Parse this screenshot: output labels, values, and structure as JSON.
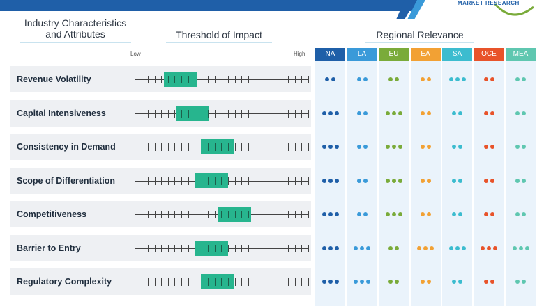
{
  "header": {
    "characteristics_title": "Industry Characteristics\nand Attributes",
    "threshold_title": "Threshold of Impact",
    "regional_title": "Regional Relevance",
    "low_label": "Low",
    "high_label": "High"
  },
  "logo": {
    "text": "MARKET RESEARCH"
  },
  "regions": [
    {
      "code": "NA",
      "color": "#1f5fa8",
      "dot_color": "#1f5fa8"
    },
    {
      "code": "LA",
      "color": "#3a9ad9",
      "dot_color": "#3a9ad9"
    },
    {
      "code": "EU",
      "color": "#7aab3a",
      "dot_color": "#7aab3a"
    },
    {
      "code": "EA",
      "color": "#f2a134",
      "dot_color": "#f2a134"
    },
    {
      "code": "SA",
      "color": "#3cbccf",
      "dot_color": "#3cbccf"
    },
    {
      "code": "OCE",
      "color": "#e8532a",
      "dot_color": "#e8532a"
    },
    {
      "code": "MEA",
      "color": "#5fc7b0",
      "dot_color": "#5fc7b0"
    }
  ],
  "scale": {
    "min": 0,
    "max": 1
  },
  "rows": [
    {
      "label": "Revenue Volatility",
      "impact_start": 0.17,
      "impact_end": 0.36,
      "dots": [
        2,
        2,
        2,
        2,
        3,
        2,
        2
      ]
    },
    {
      "label": "Capital Intensiveness",
      "impact_start": 0.24,
      "impact_end": 0.43,
      "dots": [
        3,
        2,
        3,
        2,
        2,
        2,
        2
      ]
    },
    {
      "label": "Consistency in Demand",
      "impact_start": 0.38,
      "impact_end": 0.57,
      "dots": [
        3,
        2,
        3,
        2,
        2,
        2,
        2
      ]
    },
    {
      "label": "Scope of Differentiation",
      "impact_start": 0.35,
      "impact_end": 0.54,
      "dots": [
        3,
        2,
        3,
        2,
        2,
        2,
        2
      ]
    },
    {
      "label": "Competitiveness",
      "impact_start": 0.48,
      "impact_end": 0.67,
      "dots": [
        3,
        2,
        3,
        2,
        2,
        2,
        2
      ]
    },
    {
      "label": "Barrier to Entry",
      "impact_start": 0.35,
      "impact_end": 0.54,
      "dots": [
        3,
        3,
        2,
        3,
        3,
        3,
        3
      ]
    },
    {
      "label": "Regulatory Complexity",
      "impact_start": 0.38,
      "impact_end": 0.57,
      "dots": [
        3,
        3,
        2,
        2,
        2,
        2,
        2
      ]
    }
  ]
}
